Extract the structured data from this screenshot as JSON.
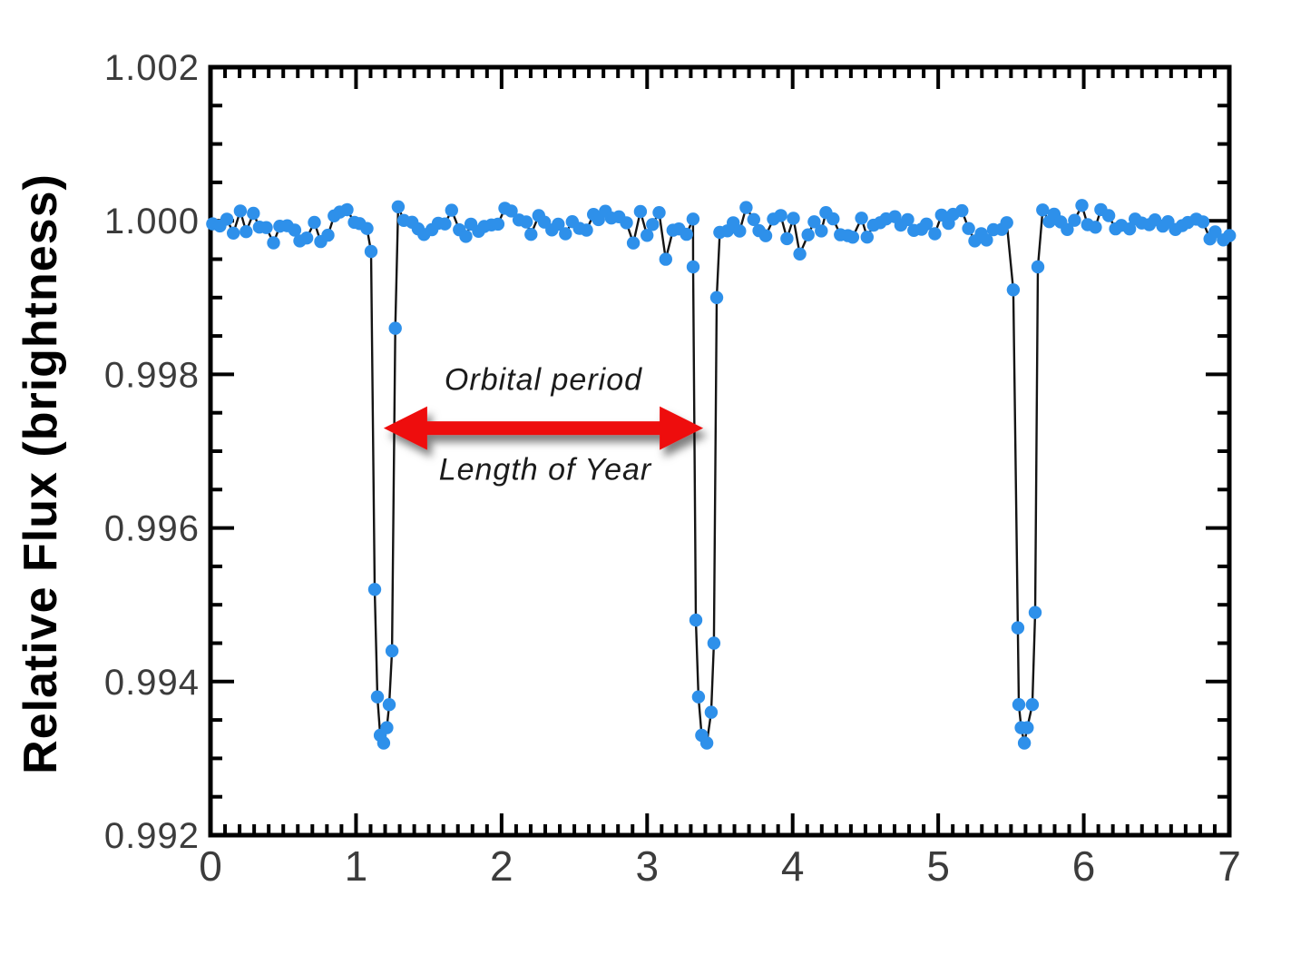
{
  "chart_data": {
    "type": "scatter",
    "title": "",
    "xlabel": "",
    "ylabel": "Relative Flux (brightness)",
    "xlim": [
      0,
      7
    ],
    "ylim": [
      0.992,
      1.002
    ],
    "grid": false,
    "x_major_ticks": [
      0,
      1,
      2,
      3,
      4,
      5,
      6,
      7
    ],
    "x_tick_labels": [
      "0",
      "1",
      "2",
      "3",
      "4",
      "5",
      "6",
      "7"
    ],
    "x_minor_step": 0.1,
    "y_major_ticks": [
      1.002,
      1.0,
      0.998,
      0.996,
      0.994,
      0.992
    ],
    "y_tick_labels": [
      "1.002",
      "1.000",
      "0.998",
      "0.996",
      "0.994",
      "0.992"
    ],
    "y_minor_step": 0.0005,
    "marker_color": "#2E90EA",
    "line_color": "#141414",
    "marker_radius_px": 7.2,
    "baseline": {
      "description": "out-of-transit flux scattered tightly around 1.000",
      "segments": [
        [
          0.02,
          1.08
        ],
        [
          1.29,
          3.3
        ],
        [
          3.5,
          5.5
        ],
        [
          5.71,
          6.99
        ]
      ],
      "step": 0.046,
      "mean": 0.99996,
      "noise_amplitude": 0.0003,
      "seed": 1337
    },
    "transits": {
      "period": 2.2,
      "depth": 0.0067,
      "centers": [
        1.19,
        3.39,
        5.58
      ],
      "points": [
        [
          [
            1.103,
            0.9996
          ],
          [
            1.128,
            0.9952
          ],
          [
            1.147,
            0.9938
          ],
          [
            1.166,
            0.9933
          ],
          [
            1.19,
            0.9932
          ],
          [
            1.212,
            0.9934
          ],
          [
            1.228,
            0.9937
          ],
          [
            1.247,
            0.9944
          ],
          [
            1.27,
            0.9986
          ]
        ],
        [
          [
            3.316,
            0.9994
          ],
          [
            3.335,
            0.9948
          ],
          [
            3.353,
            0.9938
          ],
          [
            3.375,
            0.9933
          ],
          [
            3.41,
            0.9932
          ],
          [
            3.44,
            0.9936
          ],
          [
            3.459,
            0.9945
          ],
          [
            3.478,
            0.999
          ]
        ],
        [
          [
            5.516,
            0.9991
          ],
          [
            5.547,
            0.9947
          ],
          [
            5.554,
            0.9937
          ],
          [
            5.57,
            0.9934
          ],
          [
            5.592,
            0.9932
          ],
          [
            5.612,
            0.9934
          ],
          [
            5.647,
            0.9937
          ],
          [
            5.666,
            0.9949
          ],
          [
            5.685,
            0.9994
          ]
        ]
      ]
    },
    "annotation": {
      "label_above": "Orbital period",
      "label_below": "Length of Year",
      "arrow": {
        "x1": 1.19,
        "x2": 3.385,
        "y": 0.9973,
        "color": "#EE1111"
      }
    }
  }
}
